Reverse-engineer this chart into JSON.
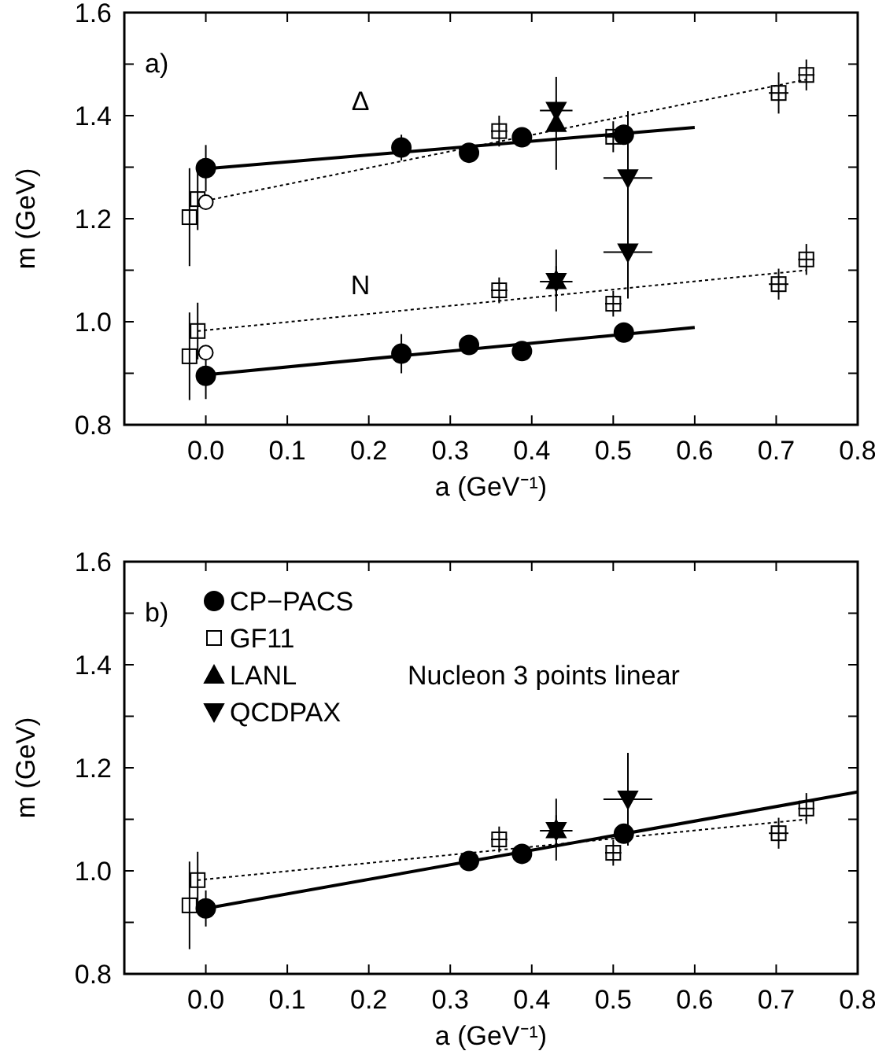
{
  "chart_data": [
    {
      "type": "scatter",
      "xlabel": "a (GeV⁻¹)",
      "ylabel": "m (GeV)",
      "xlim": [
        -0.1,
        0.8
      ],
      "ylim": [
        0.8,
        1.6
      ],
      "xticks": [
        {
          "value": 0,
          "label": "0.0"
        },
        0.1,
        0.2,
        0.3,
        0.4,
        0.5,
        0.6,
        0.7,
        0.8
      ],
      "yticks": [
        0.8,
        {
          "value": 0.9,
          "label": null
        },
        {
          "value": 1,
          "label": "1.0"
        },
        {
          "value": 1.1,
          "label": null
        },
        1.2,
        {
          "value": 1.3,
          "label": null
        },
        1.4,
        {
          "value": 1.5,
          "label": null
        },
        1.6
      ],
      "annotations": [
        "a)",
        "Δ",
        "N"
      ],
      "series": [
        {
          "type": "line",
          "color": "#000000",
          "x": [
            0,
            0.6
          ],
          "values": [
            1.297,
            1.377
          ],
          "marker": "none",
          "line_style": "solid"
        },
        {
          "type": "line",
          "color": "#000000",
          "x": [
            0,
            0.6
          ],
          "values": [
            0.897,
            0.989
          ],
          "marker": "none",
          "line_style": "solid"
        },
        {
          "type": "line",
          "color": "#000000",
          "x": [
            0,
            0.737
          ],
          "values": [
            1.235,
            1.47
          ],
          "marker": "none",
          "line_style": "dotted"
        },
        {
          "type": "line",
          "color": "#000000",
          "x": [
            -0.01,
            0.737
          ],
          "values": [
            0.982,
            1.1
          ],
          "marker": "none",
          "line_style": "dotted"
        },
        {
          "type": "scatter",
          "color": "#000000",
          "marker": "circle",
          "x": [
            0,
            0.24,
            0.323,
            0.388,
            0.513
          ],
          "values": [
            1.298,
            1.338,
            1.328,
            1.358,
            1.363
          ],
          "errors": [
            0.045,
            0.025,
            0.015,
            0.01,
            0.01
          ]
        },
        {
          "type": "scatter",
          "color": "#000000",
          "marker": "circle",
          "x": [
            0,
            0.24,
            0.323,
            0.388,
            0.513
          ],
          "values": [
            0.895,
            0.938,
            0.955,
            0.943,
            0.979
          ],
          "errors": [
            0.045,
            0.038,
            0.012,
            0.015,
            0.008
          ]
        },
        {
          "type": "scatter",
          "color": "#000000",
          "marker": "square",
          "x": [
            -0.02,
            -0.01,
            0.36,
            0.5,
            0.703,
            0.737
          ],
          "values": [
            1.203,
            1.238,
            1.37,
            1.359,
            1.444,
            1.479
          ],
          "errors": [
            0.095,
            0.06,
            0.03,
            0.03,
            0.04,
            0.03
          ],
          "xerrors": [
            null,
            null,
            0.01,
            0.01,
            0.012,
            0.01
          ]
        },
        {
          "type": "scatter",
          "color": "#000000",
          "marker": "square",
          "x": [
            -0.02,
            -0.01,
            0.36,
            0.5,
            0.703,
            0.737
          ],
          "values": [
            0.933,
            0.982,
            1.061,
            1.035,
            1.073,
            1.121
          ],
          "errors": [
            0.085,
            0.055,
            0.025,
            0.025,
            0.03,
            0.03
          ],
          "xerrors": [
            null,
            null,
            0.01,
            0.01,
            0.012,
            0.01
          ]
        },
        {
          "type": "scatter",
          "color": "#ffffff",
          "marker": "circle",
          "x": [
            0,
            0
          ],
          "values": [
            1.232,
            0.94
          ]
        },
        {
          "type": "scatter",
          "color": "#000000",
          "marker": "triangle",
          "x": [
            0.43,
            0.43
          ],
          "values": [
            1.385,
            1.08
          ],
          "errors": [
            0.09,
            0.06
          ]
        },
        {
          "type": "scatter",
          "color": "#000000",
          "marker": "triangle-down",
          "x": [
            0.43,
            0.518,
            0.43,
            0.518
          ],
          "values": [
            1.41,
            1.279,
            1.078,
            1.135
          ],
          "errors": [
            0.02,
            0.13,
            0.03,
            0.09
          ],
          "xerrors": [
            0.02,
            0.03,
            0.02,
            0.03
          ]
        }
      ]
    },
    {
      "type": "scatter",
      "xlabel": "a (GeV⁻¹)",
      "ylabel": "m (GeV)",
      "xlim": [
        -0.1,
        0.8
      ],
      "ylim": [
        0.8,
        1.6
      ],
      "legend": "top left",
      "xticks": [
        {
          "value": 0,
          "label": "0.0"
        },
        0.1,
        0.2,
        0.3,
        0.4,
        0.5,
        0.6,
        0.7,
        0.8
      ],
      "yticks": [
        0.8,
        {
          "value": 0.9,
          "label": null
        },
        {
          "value": 1,
          "label": "1.0"
        },
        {
          "value": 1.1,
          "label": null
        },
        1.2,
        {
          "value": 1.3,
          "label": null
        },
        1.4,
        {
          "value": 1.5,
          "label": null
        },
        1.6
      ],
      "annotations": [
        "b)",
        "Nucleon 3 points linear"
      ],
      "series": [
        {
          "type": "line",
          "color": "#000000",
          "x": [
            0,
            0.8
          ],
          "values": [
            0.927,
            1.153
          ],
          "marker": "none",
          "line_style": "solid"
        },
        {
          "type": "line",
          "color": "#000000",
          "x": [
            -0.01,
            0.737
          ],
          "values": [
            0.982,
            1.1
          ],
          "marker": "none",
          "line_style": "dotted"
        },
        {
          "name": "CP−PACS",
          "type": "scatter",
          "color": "#000000",
          "marker": "circle",
          "x": [
            0,
            0.323,
            0.388,
            0.513
          ],
          "values": [
            0.927,
            1.019,
            1.033,
            1.072
          ],
          "errors": [
            0.035,
            0.008,
            0.008,
            0.01
          ]
        },
        {
          "name": "GF11",
          "type": "scatter",
          "color": "#000000",
          "marker": "square",
          "x": [
            -0.02,
            -0.01,
            0.36,
            0.5,
            0.703,
            0.737
          ],
          "values": [
            0.933,
            0.982,
            1.061,
            1.035,
            1.073,
            1.121
          ],
          "errors": [
            0.085,
            0.055,
            0.025,
            0.025,
            0.03,
            0.03
          ],
          "xerrors": [
            null,
            null,
            0.01,
            0.01,
            0.012,
            0.01
          ]
        },
        {
          "name": "LANL",
          "type": "scatter",
          "color": "#000000",
          "marker": "triangle",
          "x": [
            0.43
          ],
          "values": [
            1.08
          ],
          "errors": [
            0.06
          ]
        },
        {
          "name": "QCDPAX",
          "type": "scatter",
          "color": "#000000",
          "marker": "triangle-down",
          "x": [
            0.43,
            0.518
          ],
          "values": [
            1.078,
            1.139
          ],
          "errors": [
            0.03,
            0.09
          ],
          "xerrors": [
            0.02,
            0.03
          ]
        }
      ]
    }
  ]
}
